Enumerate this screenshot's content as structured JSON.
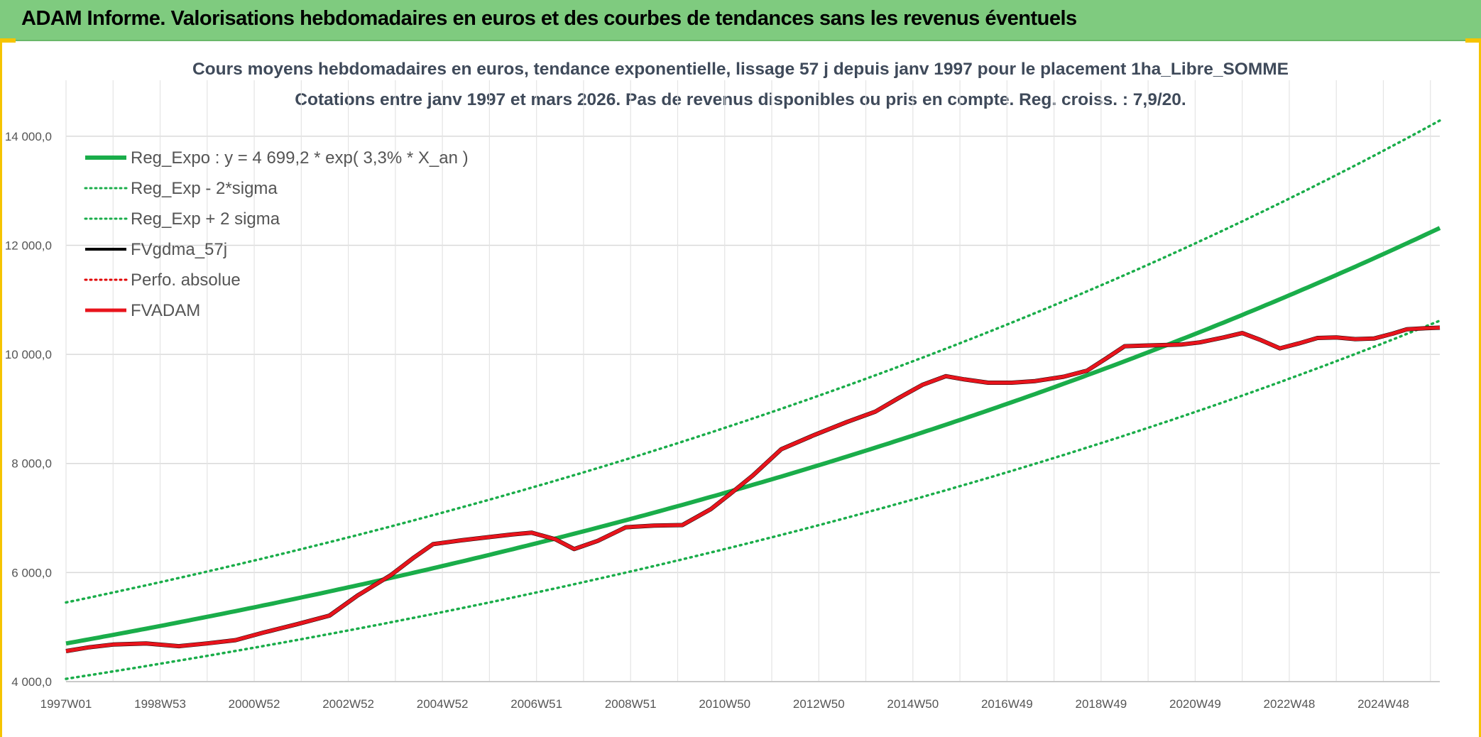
{
  "header": {
    "title": "ADAM Informe. Valorisations hebdomadaires en euros et des courbes de tendances sans les revenus éventuels",
    "background_color": "#7fcb7f"
  },
  "chart_data": {
    "type": "line",
    "title_lines": [
      "Cours moyens hebdomadaires en euros, tendance exponentielle, lissage 57 j depuis janv 1997 pour le placement 1ha_Libre_SOMME",
      "Cotations entre janv 1997 et mars 2026. Pas de revenus disponibles ou pris en compte. Reg. croiss. : 7,9/20."
    ],
    "xlabel": "",
    "ylabel": "",
    "ylim": [
      4000,
      15000
    ],
    "yticks": [
      4000,
      6000,
      8000,
      10000,
      12000,
      14000
    ],
    "ytick_labels": [
      "4 000,0",
      "6 000,0",
      "8 000,0",
      "10 000,0",
      "12 000,0",
      "14 000,0"
    ],
    "xlim": [
      1997.0,
      2026.2
    ],
    "x_tick_labels": [
      {
        "label": "1997W01",
        "year": 1997.0
      },
      {
        "label": "1998W53",
        "year": 1999.0
      },
      {
        "label": "2000W52",
        "year": 2001.0
      },
      {
        "label": "2002W52",
        "year": 2003.0
      },
      {
        "label": "2004W52",
        "year": 2005.0
      },
      {
        "label": "2006W51",
        "year": 2007.0
      },
      {
        "label": "2008W51",
        "year": 2009.0
      },
      {
        "label": "2010W50",
        "year": 2011.0
      },
      {
        "label": "2012W50",
        "year": 2013.0
      },
      {
        "label": "2014W50",
        "year": 2015.0
      },
      {
        "label": "2016W49",
        "year": 2017.0
      },
      {
        "label": "2018W49",
        "year": 2019.0
      },
      {
        "label": "2020W49",
        "year": 2021.0
      },
      {
        "label": "2022W48",
        "year": 2023.0
      },
      {
        "label": "2024W48",
        "year": 2025.0
      }
    ],
    "grid": true,
    "legend_position": "top-left",
    "trend": {
      "a": 4699.2,
      "rate": 0.033,
      "sigma_factor": 1.16
    },
    "series": [
      {
        "name": "Reg_Expo : y = 4 699,2 * exp( 3,3% *  X_an )",
        "kind": "trend",
        "color": "#1aad4a",
        "dash": "solid"
      },
      {
        "name": "Reg_Exp - 2*sigma",
        "kind": "trend_low",
        "color": "#1aad4a",
        "dash": "dotted"
      },
      {
        "name": "Reg_Exp + 2 sigma",
        "kind": "trend_high",
        "color": "#1aad4a",
        "dash": "dotted"
      },
      {
        "name": "FVgdma_57j",
        "kind": "data",
        "color": "#000000",
        "dash": "solid"
      },
      {
        "name": "Perfo. absolue",
        "kind": "legend_only",
        "color": "#e00000",
        "dash": "dotted"
      },
      {
        "name": "FVADAM",
        "kind": "data",
        "color": "#e8141c",
        "dash": "solid"
      }
    ],
    "fvadam": {
      "x": [
        1997.0,
        1997.5,
        1998.0,
        1998.7,
        1999.4,
        2000.0,
        2000.6,
        2001.2,
        2001.9,
        2002.6,
        2003.2,
        2003.9,
        2004.4,
        2004.8,
        2005.4,
        2006.0,
        2006.5,
        2006.9,
        2007.4,
        2007.8,
        2008.3,
        2008.9,
        2009.5,
        2010.1,
        2010.7,
        2011.1,
        2011.6,
        2012.2,
        2012.9,
        2013.6,
        2014.2,
        2014.7,
        2015.2,
        2015.7,
        2016.1,
        2016.6,
        2017.1,
        2017.6,
        2018.2,
        2018.7,
        2019.1,
        2019.5,
        2019.9,
        2020.3,
        2020.7,
        2021.1,
        2021.6,
        2022.0,
        2022.4,
        2022.8,
        2023.2,
        2023.6,
        2024.0,
        2024.4,
        2024.8,
        2025.2,
        2025.5,
        2025.9,
        2026.2
      ],
      "y": [
        4560,
        4630,
        4680,
        4700,
        4650,
        4700,
        4760,
        4900,
        5050,
        5210,
        5580,
        5950,
        6280,
        6520,
        6590,
        6650,
        6700,
        6730,
        6610,
        6430,
        6580,
        6830,
        6860,
        6870,
        7160,
        7430,
        7780,
        8260,
        8520,
        8760,
        8950,
        9200,
        9440,
        9600,
        9540,
        9480,
        9480,
        9510,
        9590,
        9700,
        9920,
        10150,
        10160,
        10170,
        10180,
        10220,
        10310,
        10390,
        10260,
        10110,
        10200,
        10300,
        10310,
        10280,
        10290,
        10380,
        10460,
        10480,
        10490
      ]
    }
  }
}
